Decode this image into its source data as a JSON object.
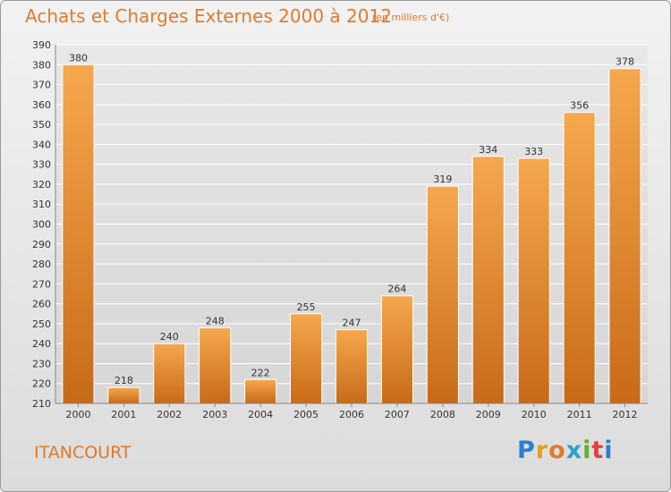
{
  "header": {
    "title": "Achats et Charges Externes 2000 à 2012",
    "subtitle": "(en milliers d'€)"
  },
  "footer": {
    "place": "ITANCOURT",
    "logo": {
      "text": "Proxiti",
      "letters": [
        {
          "ch": "P",
          "color": "#2a7fd0"
        },
        {
          "ch": "r",
          "color": "#e0a020"
        },
        {
          "ch": "o",
          "color": "#e07a2a"
        },
        {
          "ch": "x",
          "color": "#2aa0d0"
        },
        {
          "ch": "i",
          "color": "#60b030"
        },
        {
          "ch": "t",
          "color": "#e04040"
        },
        {
          "ch": "i",
          "color": "#2a7fd0"
        }
      ]
    }
  },
  "colors": {
    "accent": "#e07a2a",
    "bar_light": "#f6a84e",
    "bar_dark": "#c86a18",
    "grid": "#ffffff",
    "axis": "#888888"
  },
  "chart_data": {
    "type": "bar",
    "title": "Achats et Charges Externes 2000 à 2012",
    "subtitle": "(en milliers d'€)",
    "xlabel": "",
    "ylabel": "",
    "categories": [
      "2000",
      "2001",
      "2002",
      "2003",
      "2004",
      "2005",
      "2006",
      "2007",
      "2008",
      "2009",
      "2010",
      "2011",
      "2012"
    ],
    "values": [
      380,
      218,
      240,
      248,
      222,
      255,
      247,
      264,
      319,
      334,
      333,
      356,
      378
    ],
    "ylim": [
      210,
      390
    ],
    "yticks": [
      210,
      220,
      230,
      240,
      250,
      260,
      270,
      280,
      290,
      300,
      310,
      320,
      330,
      340,
      350,
      360,
      370,
      380,
      390
    ],
    "grid": true,
    "data_labels": true
  }
}
